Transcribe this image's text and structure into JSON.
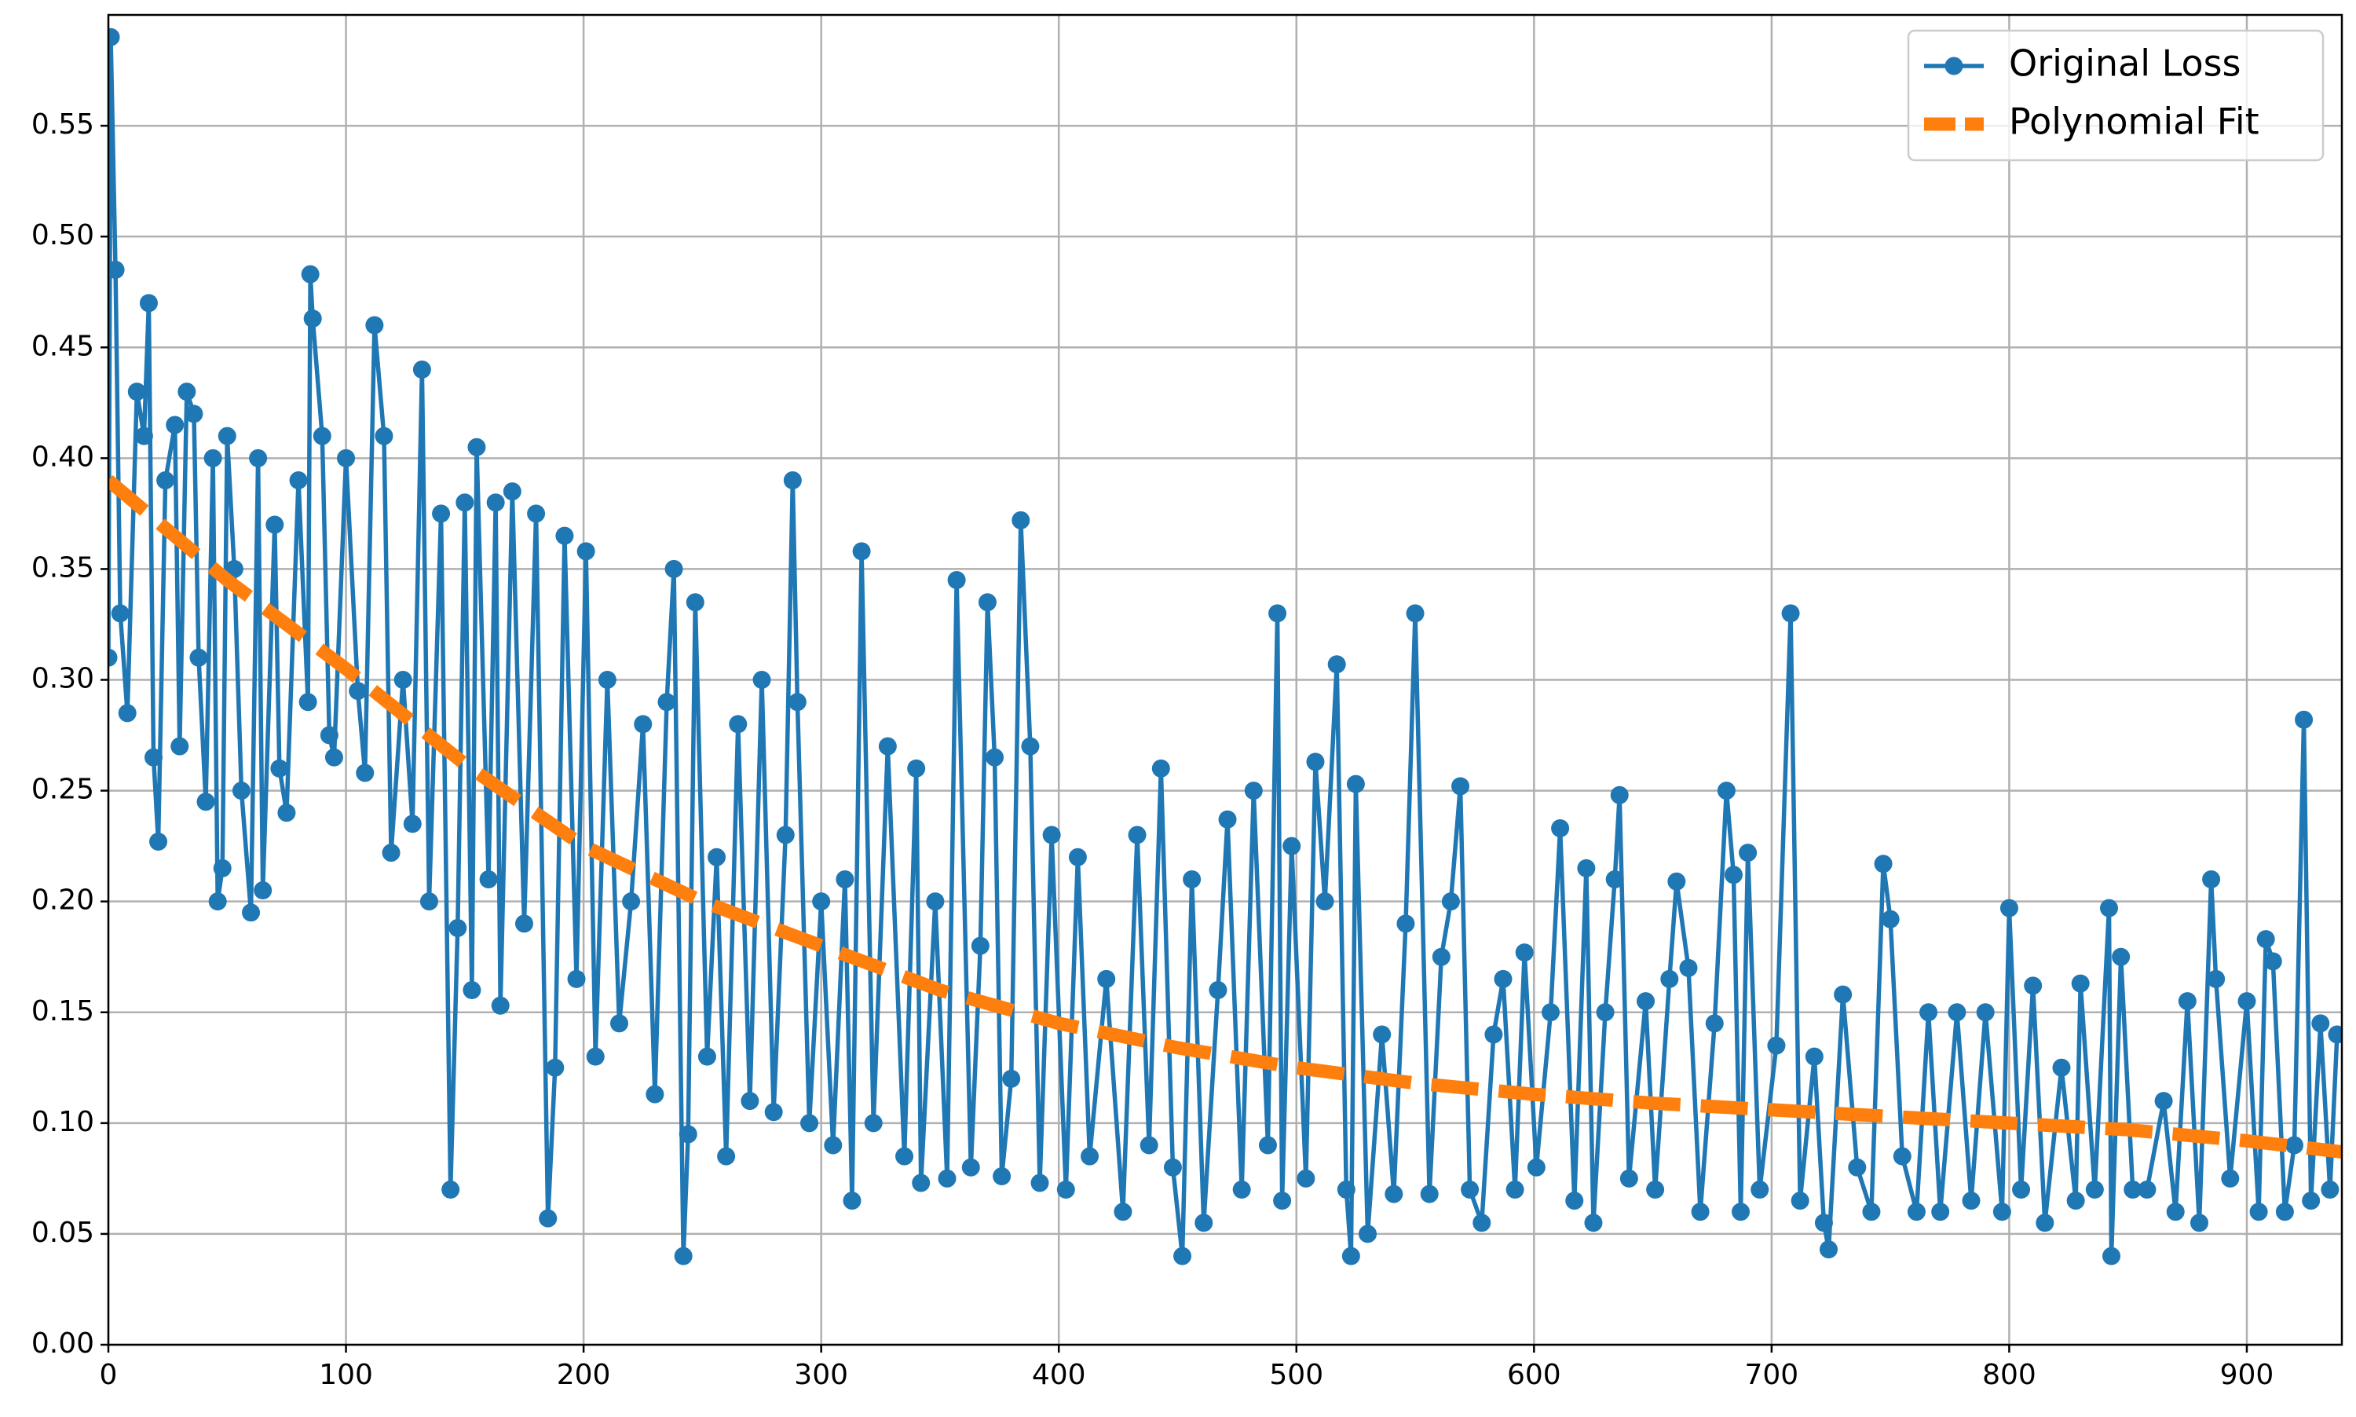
{
  "chart_data": {
    "type": "line",
    "grid": true,
    "legend": "upper right",
    "xlim": [
      0,
      940
    ],
    "ylim": [
      0,
      0.6
    ],
    "xticks": [
      0,
      100,
      200,
      300,
      400,
      500,
      600,
      700,
      800,
      900
    ],
    "yticks": [
      {
        "value": 0,
        "label": "0.00"
      },
      0.05,
      {
        "value": 0.1,
        "label": "0.10"
      },
      0.15,
      {
        "value": 0.2,
        "label": "0.20"
      },
      0.25,
      {
        "value": 0.3,
        "label": "0.30"
      },
      0.35,
      {
        "value": 0.4,
        "label": "0.40"
      },
      0.45,
      {
        "value": 0.5,
        "label": "0.50"
      },
      0.55
    ],
    "series": [
      {
        "name": "Original Loss",
        "color": "#1f77b4",
        "marker": "o",
        "linestyle": "solid",
        "x": [
          0,
          1,
          3,
          5,
          8,
          12,
          15,
          17,
          19,
          21,
          24,
          28,
          30,
          33,
          36,
          38,
          41,
          44,
          46,
          48,
          50,
          53,
          56,
          60,
          63,
          65,
          70,
          72,
          75,
          80,
          84,
          85,
          86,
          90,
          93,
          95,
          100,
          105,
          108,
          112,
          116,
          119,
          124,
          128,
          132,
          135,
          140,
          144,
          147,
          150,
          153,
          155,
          160,
          163,
          165,
          170,
          175,
          180,
          185,
          188,
          192,
          197,
          201,
          205,
          210,
          215,
          220,
          225,
          230,
          235,
          238,
          242,
          244,
          247,
          252,
          256,
          260,
          265,
          270,
          275,
          280,
          285,
          288,
          290,
          295,
          300,
          305,
          310,
          313,
          317,
          322,
          328,
          335,
          340,
          342,
          348,
          353,
          357,
          363,
          367,
          370,
          373,
          376,
          380,
          384,
          388,
          392,
          397,
          403,
          408,
          413,
          420,
          427,
          433,
          438,
          443,
          448,
          452,
          456,
          461,
          467,
          471,
          477,
          482,
          488,
          492,
          494,
          498,
          504,
          508,
          512,
          517,
          521,
          523,
          525,
          530,
          536,
          541,
          546,
          550,
          556,
          561,
          565,
          569,
          573,
          578,
          583,
          587,
          592,
          596,
          601,
          607,
          611,
          617,
          622,
          625,
          630,
          634,
          636,
          640,
          647,
          651,
          657,
          660,
          665,
          670,
          676,
          681,
          684,
          687,
          690,
          695,
          702,
          708,
          712,
          718,
          722,
          724,
          730,
          736,
          742,
          747,
          750,
          755,
          761,
          766,
          771,
          778,
          784,
          790,
          797,
          800,
          805,
          810,
          815,
          822,
          828,
          830,
          836,
          842,
          843,
          847,
          852,
          858,
          865,
          870,
          875,
          880,
          885,
          887,
          893,
          900,
          905,
          908,
          911,
          916,
          920,
          924,
          927,
          931,
          935,
          938
        ],
        "values": [
          0.31,
          0.59,
          0.485,
          0.33,
          0.285,
          0.43,
          0.41,
          0.47,
          0.265,
          0.227,
          0.39,
          0.415,
          0.27,
          0.43,
          0.42,
          0.31,
          0.245,
          0.4,
          0.2,
          0.215,
          0.41,
          0.35,
          0.25,
          0.195,
          0.4,
          0.205,
          0.37,
          0.26,
          0.24,
          0.39,
          0.29,
          0.483,
          0.463,
          0.41,
          0.275,
          0.265,
          0.4,
          0.295,
          0.258,
          0.46,
          0.41,
          0.222,
          0.3,
          0.235,
          0.44,
          0.2,
          0.375,
          0.07,
          0.188,
          0.38,
          0.16,
          0.405,
          0.21,
          0.38,
          0.153,
          0.385,
          0.19,
          0.375,
          0.057,
          0.125,
          0.365,
          0.165,
          0.358,
          0.13,
          0.3,
          0.145,
          0.2,
          0.28,
          0.113,
          0.29,
          0.35,
          0.04,
          0.095,
          0.335,
          0.13,
          0.22,
          0.085,
          0.28,
          0.11,
          0.3,
          0.105,
          0.23,
          0.39,
          0.29,
          0.1,
          0.2,
          0.09,
          0.21,
          0.065,
          0.358,
          0.1,
          0.27,
          0.085,
          0.26,
          0.073,
          0.2,
          0.075,
          0.345,
          0.08,
          0.18,
          0.335,
          0.265,
          0.076,
          0.12,
          0.372,
          0.27,
          0.073,
          0.23,
          0.07,
          0.22,
          0.085,
          0.165,
          0.06,
          0.23,
          0.09,
          0.26,
          0.08,
          0.04,
          0.21,
          0.055,
          0.16,
          0.237,
          0.07,
          0.25,
          0.09,
          0.33,
          0.065,
          0.225,
          0.075,
          0.263,
          0.2,
          0.307,
          0.07,
          0.04,
          0.253,
          0.05,
          0.14,
          0.068,
          0.19,
          0.33,
          0.068,
          0.175,
          0.2,
          0.252,
          0.07,
          0.055,
          0.14,
          0.165,
          0.07,
          0.177,
          0.08,
          0.15,
          0.233,
          0.065,
          0.215,
          0.055,
          0.15,
          0.21,
          0.248,
          0.075,
          0.155,
          0.07,
          0.165,
          0.209,
          0.17,
          0.06,
          0.145,
          0.25,
          0.212,
          0.06,
          0.222,
          0.07,
          0.135,
          0.33,
          0.065,
          0.13,
          0.055,
          0.043,
          0.158,
          0.08,
          0.06,
          0.217,
          0.192,
          0.085,
          0.06,
          0.15,
          0.06,
          0.15,
          0.065,
          0.15,
          0.06,
          0.197,
          0.07,
          0.162,
          0.055,
          0.125,
          0.065,
          0.163,
          0.07,
          0.197,
          0.04,
          0.175,
          0.07,
          0.07,
          0.11,
          0.06,
          0.155,
          0.055,
          0.21,
          0.165,
          0.075,
          0.155,
          0.06,
          0.183,
          0.173,
          0.06,
          0.09,
          0.282,
          0.065,
          0.145,
          0.07,
          0.14
        ]
      },
      {
        "name": "Polynomial Fit",
        "color": "#ff7f0e",
        "linestyle": "dashed",
        "x": [
          0,
          50,
          100,
          150,
          200,
          250,
          300,
          350,
          400,
          450,
          500,
          550,
          600,
          650,
          700,
          750,
          800,
          850,
          900,
          940
        ],
        "values": [
          0.39,
          0.345,
          0.305,
          0.262,
          0.225,
          0.2,
          0.18,
          0.16,
          0.145,
          0.134,
          0.125,
          0.118,
          0.113,
          0.109,
          0.106,
          0.103,
          0.1,
          0.097,
          0.092,
          0.087
        ]
      }
    ]
  }
}
